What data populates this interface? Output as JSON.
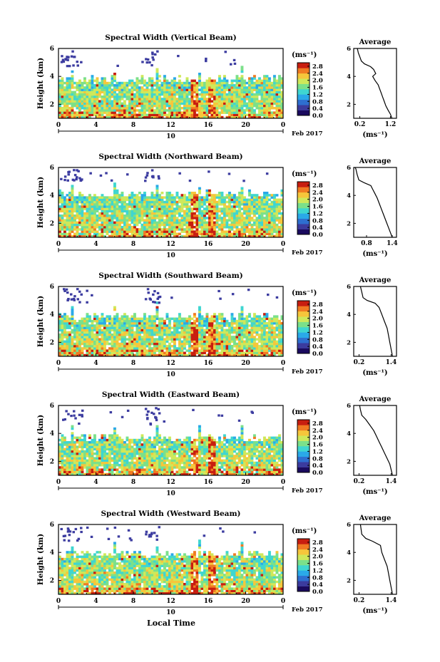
{
  "figure": {
    "xlabel": "Local Time",
    "date_label": "Feb 2017",
    "day_label": "10",
    "unit_label": "(ms⁻¹)",
    "colors": {
      "colormap": [
        "#1a0a5e",
        "#3b3b9e",
        "#2e6fd0",
        "#2aa9e8",
        "#3fd6d0",
        "#7be08a",
        "#cfe85a",
        "#f6c63b",
        "#f07a22",
        "#c81e10"
      ],
      "fill_white": "#ffffff",
      "sparse_purple": "#3c3ca0"
    }
  },
  "chart_data": [
    {
      "type": "heatmap",
      "title": "Spectral Width (Vertical Beam)",
      "xlabel": "Local Time",
      "ylabel": "Height (km)",
      "xlim": [
        0,
        24
      ],
      "ylim": [
        1,
        6
      ],
      "x_ticks": [
        "0",
        "4",
        "8",
        "12",
        "16",
        "20",
        "0"
      ],
      "y_ticks": [
        "2",
        "4",
        "6"
      ],
      "colorbar": {
        "label": "(ms⁻¹)",
        "ticks": [
          "0.0",
          "0.4",
          "0.8",
          "1.2",
          "1.6",
          "2.0",
          "2.4",
          "2.8"
        ],
        "range": [
          0.0,
          3.0
        ]
      },
      "top_km": 3.9,
      "profile": {
        "title": "Average",
        "xlabel": "(ms⁻¹)",
        "x_ticks": [
          "0.2",
          "1.2"
        ],
        "xlim": [
          0.0,
          1.4
        ],
        "ylim": [
          1,
          6
        ],
        "y_ticks": [
          "2",
          "4",
          "6"
        ],
        "points": [
          [
            1.25,
            1.0
          ],
          [
            1.2,
            1.3
          ],
          [
            1.12,
            1.6
          ],
          [
            1.05,
            1.9
          ],
          [
            1.0,
            2.2
          ],
          [
            0.95,
            2.5
          ],
          [
            0.9,
            2.8
          ],
          [
            0.85,
            3.1
          ],
          [
            0.8,
            3.4
          ],
          [
            0.7,
            3.7
          ],
          [
            0.62,
            4.0
          ],
          [
            0.72,
            4.2
          ],
          [
            0.65,
            4.5
          ],
          [
            0.55,
            4.7
          ],
          [
            0.35,
            4.9
          ],
          [
            0.25,
            5.1
          ],
          [
            0.2,
            5.4
          ],
          [
            0.15,
            5.7
          ],
          [
            0.12,
            6.0
          ]
        ]
      }
    },
    {
      "type": "heatmap",
      "title": "Spectral Width (Northward Beam)",
      "xlabel": "Local Time",
      "ylabel": "Height (km)",
      "xlim": [
        0,
        24
      ],
      "ylim": [
        1,
        6
      ],
      "x_ticks": [
        "0",
        "4",
        "8",
        "12",
        "16",
        "20",
        "0"
      ],
      "y_ticks": [
        "2",
        "4",
        "6"
      ],
      "colorbar": {
        "label": "(ms⁻¹)",
        "ticks": [
          "0.0",
          "0.4",
          "0.8",
          "1.2",
          "1.6",
          "2.0",
          "2.4",
          "2.8"
        ],
        "range": [
          0.0,
          3.0
        ]
      },
      "top_km": 4.2,
      "profile": {
        "title": "Average",
        "xlabel": "(ms⁻¹)",
        "x_ticks": [
          "0.8",
          "1.4"
        ],
        "xlim": [
          0.5,
          1.5
        ],
        "ylim": [
          1,
          6
        ],
        "y_ticks": [
          "2",
          "4",
          "6"
        ],
        "points": [
          [
            1.4,
            1.0
          ],
          [
            1.35,
            1.4
          ],
          [
            1.3,
            1.8
          ],
          [
            1.25,
            2.2
          ],
          [
            1.2,
            2.6
          ],
          [
            1.15,
            3.0
          ],
          [
            1.1,
            3.4
          ],
          [
            1.05,
            3.8
          ],
          [
            1.0,
            4.1
          ],
          [
            0.95,
            4.4
          ],
          [
            0.9,
            4.7
          ],
          [
            0.75,
            4.9
          ],
          [
            0.62,
            5.1
          ],
          [
            0.58,
            5.5
          ],
          [
            0.55,
            5.9
          ],
          [
            0.53,
            6.0
          ]
        ]
      }
    },
    {
      "type": "heatmap",
      "title": "Spectral Width (Southward Beam)",
      "xlabel": "Local Time",
      "ylabel": "Height (km)",
      "xlim": [
        0,
        24
      ],
      "ylim": [
        1,
        6
      ],
      "x_ticks": [
        "0",
        "4",
        "8",
        "12",
        "16",
        "20",
        "0"
      ],
      "y_ticks": [
        "2",
        "4",
        "6"
      ],
      "colorbar": {
        "label": "(ms⁻¹)",
        "ticks": [
          "0.0",
          "0.4",
          "0.8",
          "1.2",
          "1.6",
          "2.0",
          "2.4",
          "2.8"
        ],
        "range": [
          0.0,
          3.0
        ]
      },
      "top_km": 4.0,
      "profile": {
        "title": "Average",
        "xlabel": "(ms⁻¹)",
        "x_ticks": [
          "0.2",
          "1.4"
        ],
        "xlim": [
          0.0,
          1.6
        ],
        "ylim": [
          1,
          6
        ],
        "y_ticks": [
          "2",
          "4",
          "6"
        ],
        "points": [
          [
            1.45,
            1.0
          ],
          [
            1.4,
            1.5
          ],
          [
            1.35,
            2.0
          ],
          [
            1.3,
            2.5
          ],
          [
            1.25,
            3.0
          ],
          [
            1.15,
            3.5
          ],
          [
            1.05,
            4.0
          ],
          [
            0.95,
            4.5
          ],
          [
            0.8,
            4.8
          ],
          [
            0.5,
            5.0
          ],
          [
            0.35,
            5.2
          ],
          [
            0.3,
            5.6
          ],
          [
            0.25,
            6.0
          ]
        ]
      }
    },
    {
      "type": "heatmap",
      "title": "Spectral Width (Eastward Beam)",
      "xlabel": "Local Time",
      "ylabel": "Height (km)",
      "xlim": [
        0,
        24
      ],
      "ylim": [
        1,
        6
      ],
      "x_ticks": [
        "0",
        "4",
        "8",
        "12",
        "16",
        "20",
        "0"
      ],
      "y_ticks": [
        "2",
        "4",
        "6"
      ],
      "colorbar": {
        "label": "(ms⁻¹)",
        "ticks": [
          "0.0",
          "0.4",
          "0.8",
          "1.2",
          "1.6",
          "2.0",
          "2.4",
          "2.8"
        ],
        "range": [
          0.0,
          3.0
        ]
      },
      "top_km": 3.8,
      "profile": {
        "title": "Average",
        "xlabel": "(ms⁻¹)",
        "x_ticks": [
          "0.2",
          "1.4"
        ],
        "xlim": [
          0.0,
          1.6
        ],
        "ylim": [
          1,
          6
        ],
        "y_ticks": [
          "2",
          "4",
          "6"
        ],
        "points": [
          [
            1.45,
            1.0
          ],
          [
            1.4,
            1.4
          ],
          [
            1.35,
            1.8
          ],
          [
            1.25,
            2.2
          ],
          [
            1.15,
            2.6
          ],
          [
            1.05,
            3.0
          ],
          [
            0.95,
            3.4
          ],
          [
            0.85,
            3.8
          ],
          [
            0.75,
            4.2
          ],
          [
            0.6,
            4.6
          ],
          [
            0.45,
            5.0
          ],
          [
            0.3,
            5.3
          ],
          [
            0.25,
            5.7
          ],
          [
            0.22,
            6.0
          ]
        ]
      }
    },
    {
      "type": "heatmap",
      "title": "Spectral Width (Westward Beam)",
      "xlabel": "Local Time",
      "ylabel": "Height (km)",
      "xlim": [
        0,
        24
      ],
      "ylim": [
        1,
        6
      ],
      "x_ticks": [
        "0",
        "4",
        "8",
        "12",
        "16",
        "20",
        "0"
      ],
      "y_ticks": [
        "2",
        "4",
        "6"
      ],
      "colorbar": {
        "label": "(ms⁻¹)",
        "ticks": [
          "0.0",
          "0.4",
          "0.8",
          "1.2",
          "1.6",
          "2.0",
          "2.4",
          "2.8"
        ],
        "range": [
          0.0,
          3.0
        ]
      },
      "top_km": 4.0,
      "profile": {
        "title": "Average",
        "xlabel": "(ms⁻¹)",
        "x_ticks": [
          "0.2",
          "1.4"
        ],
        "xlim": [
          0.0,
          1.6
        ],
        "ylim": [
          1,
          6
        ],
        "y_ticks": [
          "2",
          "4",
          "6"
        ],
        "points": [
          [
            1.45,
            1.0
          ],
          [
            1.4,
            1.5
          ],
          [
            1.35,
            2.0
          ],
          [
            1.3,
            2.5
          ],
          [
            1.25,
            3.0
          ],
          [
            1.15,
            3.5
          ],
          [
            1.05,
            4.0
          ],
          [
            1.0,
            4.5
          ],
          [
            0.7,
            4.8
          ],
          [
            0.45,
            5.0
          ],
          [
            0.3,
            5.3
          ],
          [
            0.28,
            5.6
          ],
          [
            0.25,
            6.0
          ]
        ]
      }
    }
  ]
}
